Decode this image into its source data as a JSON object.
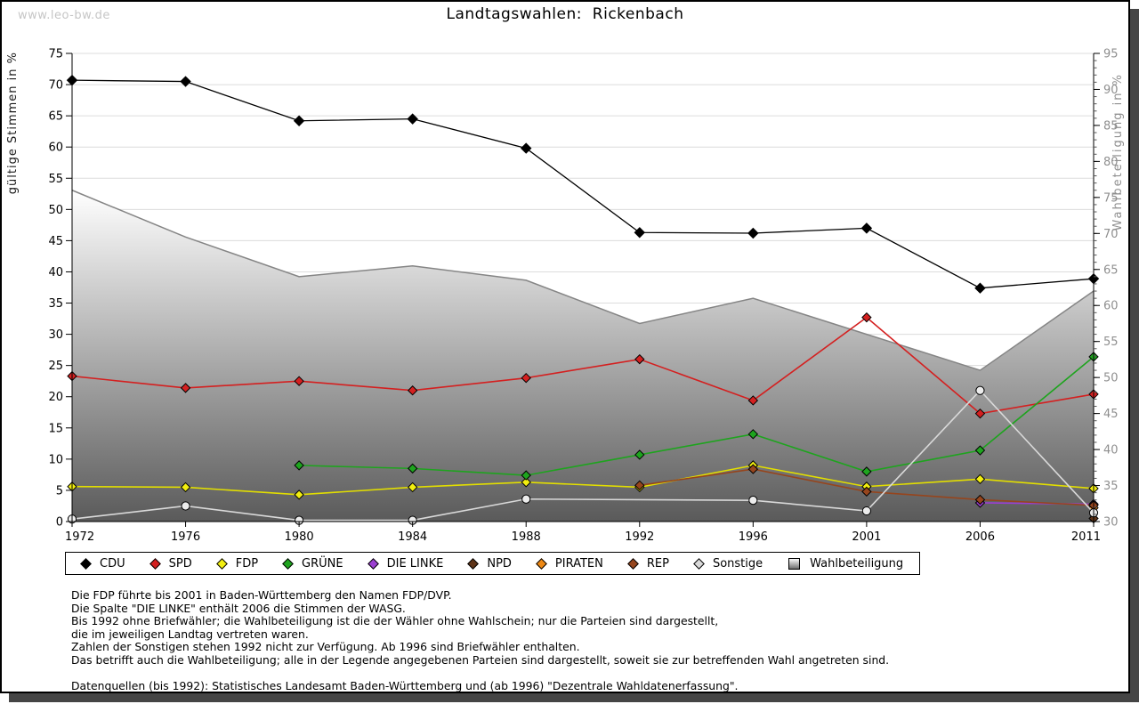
{
  "watermark": "www.leo-bw.de",
  "title": "Landtagswahlen:  Rickenbach",
  "chart_data": {
    "type": "line",
    "title": "Landtagswahlen: Rickenbach",
    "x": [
      1972,
      1976,
      1980,
      1984,
      1988,
      1992,
      1996,
      2001,
      2006,
      2011
    ],
    "left_axis": {
      "label": "gültige Stimmen in %",
      "min": 0,
      "max": 75,
      "step": 5
    },
    "right_axis": {
      "label": "Wahlbeteiligung in %",
      "min": 30,
      "max": 95,
      "step": 5,
      "minor_step": 1
    },
    "grid": "horizontal",
    "legend_position": "bottom",
    "series": [
      {
        "name": "Wahlbeteiligung",
        "type": "area",
        "axis": "right",
        "color": "#b0b0b0",
        "line": "#858585",
        "values": [
          76,
          69.5,
          64,
          65.5,
          63.5,
          57.5,
          61,
          56,
          51,
          62
        ]
      },
      {
        "name": "CDU",
        "type": "line",
        "axis": "left",
        "marker": "diamond",
        "color": "#000000",
        "line": "#000000",
        "values": [
          70.7,
          70.5,
          64.2,
          64.5,
          59.8,
          46.3,
          46.2,
          47.0,
          37.4,
          38.9
        ]
      },
      {
        "name": "SPD",
        "type": "line",
        "axis": "left",
        "marker": "diamond",
        "color": "#d42020",
        "line": "#d42020",
        "values": [
          23.3,
          21.4,
          22.5,
          21.0,
          23.0,
          26.0,
          19.4,
          32.7,
          17.3,
          20.4
        ]
      },
      {
        "name": "FDP",
        "type": "line",
        "axis": "left",
        "marker": "diamond",
        "color": "#f2ee10",
        "line": "#e2de00",
        "values": [
          5.6,
          5.5,
          4.3,
          5.5,
          6.3,
          5.5,
          9.0,
          5.6,
          6.8,
          5.3
        ]
      },
      {
        "name": "GRÜNE",
        "type": "line",
        "axis": "left",
        "marker": "diamond",
        "color": "#1ea41e",
        "line": "#1ea41e",
        "values": [
          null,
          null,
          9.0,
          8.5,
          7.4,
          10.7,
          14.0,
          8.0,
          11.4,
          26.4
        ]
      },
      {
        "name": "DIE LINKE",
        "type": "line",
        "axis": "left",
        "marker": "diamond",
        "color": "#9b3fd1",
        "line": "#9b3fd1",
        "values": [
          null,
          null,
          null,
          null,
          null,
          null,
          null,
          null,
          3.0,
          2.8
        ]
      },
      {
        "name": "NPD",
        "type": "line",
        "axis": "left",
        "marker": "diamond",
        "color": "#5e3317",
        "line": "#5e3317",
        "values": [
          null,
          null,
          null,
          null,
          null,
          null,
          null,
          null,
          null,
          0.5
        ]
      },
      {
        "name": "PIRATEN",
        "type": "line",
        "axis": "left",
        "marker": "diamond",
        "color": "#ed8814",
        "line": "#ed8814",
        "values": [
          null,
          null,
          null,
          null,
          null,
          null,
          null,
          null,
          null,
          2.2
        ]
      },
      {
        "name": "REP",
        "type": "line",
        "axis": "left",
        "marker": "diamond",
        "color": "#96451d",
        "line": "#96451d",
        "values": [
          null,
          null,
          null,
          null,
          null,
          5.8,
          8.4,
          4.8,
          3.5,
          2.6
        ]
      },
      {
        "name": "Sonstige",
        "type": "line",
        "axis": "left",
        "marker": "circle",
        "color": "#ececec",
        "line": "#d9d9d9",
        "values": [
          0.4,
          2.5,
          0.2,
          0.2,
          3.6,
          null,
          3.4,
          1.7,
          21.0,
          1.4
        ]
      }
    ]
  },
  "legend": {
    "items": [
      {
        "label": "CDU",
        "marker": "diamond",
        "color": "#000000"
      },
      {
        "label": "SPD",
        "marker": "diamond",
        "color": "#d42020"
      },
      {
        "label": "FDP",
        "marker": "diamond",
        "color": "#f2ee10"
      },
      {
        "label": "GRÜNE",
        "marker": "diamond",
        "color": "#1ea41e"
      },
      {
        "label": "DIE LINKE",
        "marker": "diamond",
        "color": "#9b3fd1"
      },
      {
        "label": "NPD",
        "marker": "diamond",
        "color": "#5e3317"
      },
      {
        "label": "PIRATEN",
        "marker": "diamond",
        "color": "#ed8814"
      },
      {
        "label": "REP",
        "marker": "diamond",
        "color": "#96451d"
      },
      {
        "label": "Sonstige",
        "marker": "diamond",
        "color": "#d9d9d9"
      },
      {
        "label": "Wahlbeteiligung",
        "marker": "square",
        "color": "#aaaaaa"
      }
    ]
  },
  "footnotes": {
    "lines": [
      "Die FDP führte bis 2001 in Baden-Württemberg den Namen FDP/DVP.",
      "Die Spalte \"DIE LINKE\" enthält 2006 die Stimmen der WASG.",
      "Bis 1992 ohne Briefwähler; die Wahlbeteiligung ist die der Wähler ohne Wahlschein; nur die Parteien sind dargestellt,",
      "die im jeweiligen Landtag vertreten waren.",
      "Zahlen der Sonstigen stehen 1992 nicht zur Verfügung. Ab 1996 sind Briefwähler enthalten.",
      "Das betrifft auch die Wahlbeteiligung; alle in der Legende angegebenen Parteien sind dargestellt, soweit sie zur betreffenden Wahl angetreten sind."
    ],
    "source": "Datenquellen (bis 1992): Statistisches Landesamt Baden-Württemberg und (ab 1996) \"Dezentrale Wahldatenerfassung\"."
  }
}
